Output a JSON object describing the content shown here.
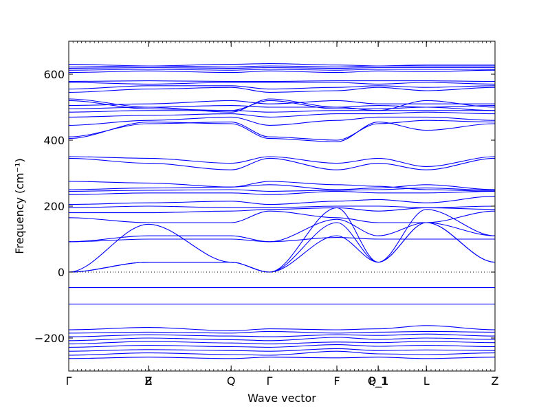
{
  "chart_data": {
    "type": "line",
    "xlabel": "Wave vector",
    "ylabel": "Frequency (cm⁻¹)",
    "ylim": [
      -300,
      700
    ],
    "xlim": [
      0,
      1
    ],
    "yticks": [
      -200,
      0,
      200,
      400,
      600
    ],
    "ytick_labels": [
      "−200",
      "0",
      "200",
      "400",
      "600"
    ],
    "high_symmetry_points": [
      {
        "label": "Γ",
        "x": 0.0
      },
      {
        "label": "B",
        "x": 0.187
      },
      {
        "label": "Z",
        "x": 0.187
      },
      {
        "label": "Q",
        "x": 0.381
      },
      {
        "label": "Γ",
        "x": 0.471
      },
      {
        "label": "F",
        "x": 0.629
      },
      {
        "label": "P_1",
        "x": 0.726
      },
      {
        "label": "Q_1",
        "x": 0.726
      },
      {
        "label": "L",
        "x": 0.839
      },
      {
        "label": "Z",
        "x": 1.0
      }
    ],
    "zero_line": true,
    "line_color": "#0000ff",
    "series": [
      {
        "x": [
          0,
          0.187,
          0.381,
          0.471,
          0.629,
          0.726,
          0.839,
          1
        ],
        "y": [
          -262,
          -258,
          -262,
          -258,
          -260,
          -258,
          -262,
          -258
        ]
      },
      {
        "x": [
          0,
          0.187,
          0.381,
          0.471,
          0.629,
          0.726,
          0.839,
          1
        ],
        "y": [
          -252,
          -245,
          -250,
          -252,
          -240,
          -248,
          -250,
          -245
        ]
      },
      {
        "x": [
          0,
          0.187,
          0.381,
          0.471,
          0.629,
          0.726,
          0.839,
          1
        ],
        "y": [
          -240,
          -235,
          -238,
          -240,
          -232,
          -238,
          -236,
          -238
        ]
      },
      {
        "x": [
          0,
          0.187,
          0.381,
          0.471,
          0.629,
          0.726,
          0.839,
          1
        ],
        "y": [
          -228,
          -222,
          -226,
          -228,
          -220,
          -225,
          -222,
          -226
        ]
      },
      {
        "x": [
          0,
          0.187,
          0.381,
          0.471,
          0.629,
          0.726,
          0.839,
          1
        ],
        "y": [
          -218,
          -210,
          -215,
          -218,
          -212,
          -214,
          -210,
          -214
        ]
      },
      {
        "x": [
          0,
          0.187,
          0.381,
          0.471,
          0.629,
          0.726,
          0.839,
          1
        ],
        "y": [
          -208,
          -200,
          -205,
          -208,
          -198,
          -204,
          -200,
          -204
        ]
      },
      {
        "x": [
          0,
          0.187,
          0.381,
          0.471,
          0.629,
          0.726,
          0.839,
          1
        ],
        "y": [
          -196,
          -190,
          -194,
          -196,
          -190,
          -192,
          -188,
          -194
        ]
      },
      {
        "x": [
          0,
          0.187,
          0.381,
          0.471,
          0.629,
          0.726,
          0.839,
          1
        ],
        "y": [
          -185,
          -182,
          -185,
          -180,
          -185,
          -182,
          -180,
          -182
        ]
      },
      {
        "x": [
          0,
          0.187,
          0.381,
          0.471,
          0.629,
          0.726,
          0.839,
          1
        ],
        "y": [
          -175,
          -168,
          -178,
          -172,
          -175,
          -172,
          -162,
          -175
        ]
      },
      {
        "x": [
          0,
          1
        ],
        "y": [
          -97,
          -97
        ]
      },
      {
        "x": [
          0,
          1
        ],
        "y": [
          -47,
          -47
        ]
      },
      {
        "x": [
          0,
          0.187,
          0.381,
          0.471,
          0.629,
          0.726,
          0.839,
          1
        ],
        "y": [
          0,
          30,
          30,
          0,
          150,
          30,
          150,
          30
        ]
      },
      {
        "x": [
          0,
          0.187,
          0.381,
          0.471,
          0.629,
          0.726,
          0.839,
          1
        ],
        "y": [
          0,
          30,
          30,
          0,
          110,
          30,
          150,
          30
        ]
      },
      {
        "x": [
          0,
          0.187,
          0.381,
          0.471,
          0.629,
          0.726,
          0.839,
          1
        ],
        "y": [
          0,
          145,
          30,
          0,
          195,
          30,
          190,
          110
        ]
      },
      {
        "x": [
          0,
          0.187,
          0.381,
          0.471,
          0.629,
          0.726,
          0.839,
          1
        ],
        "y": [
          92,
          100,
          100,
          92,
          105,
          100,
          100,
          100
        ]
      },
      {
        "x": [
          0,
          0.187,
          0.381,
          0.471,
          0.629,
          0.726,
          0.839,
          1
        ],
        "y": [
          92,
          110,
          110,
          92,
          160,
          110,
          150,
          110
        ]
      },
      {
        "x": [
          0,
          0.187,
          0.381,
          0.471,
          0.629,
          0.726,
          0.839,
          1
        ],
        "y": [
          165,
          150,
          150,
          185,
          165,
          150,
          150,
          185
        ]
      },
      {
        "x": [
          0,
          0.187,
          0.381,
          0.471,
          0.629,
          0.726,
          0.839,
          1
        ],
        "y": [
          180,
          180,
          185,
          190,
          195,
          185,
          195,
          200
        ]
      },
      {
        "x": [
          0,
          0.187,
          0.381,
          0.471,
          0.629,
          0.726,
          0.839,
          1
        ],
        "y": [
          195,
          200,
          195,
          195,
          200,
          200,
          195,
          190
        ]
      },
      {
        "x": [
          0,
          0.187,
          0.381,
          0.471,
          0.629,
          0.726,
          0.839,
          1
        ],
        "y": [
          205,
          210,
          215,
          205,
          215,
          220,
          210,
          230
        ]
      },
      {
        "x": [
          0,
          0.187,
          0.381,
          0.471,
          0.629,
          0.726,
          0.839,
          1
        ],
        "y": [
          235,
          240,
          240,
          235,
          245,
          240,
          240,
          245
        ]
      },
      {
        "x": [
          0,
          0.187,
          0.381,
          0.471,
          0.629,
          0.726,
          0.839,
          1
        ],
        "y": [
          245,
          248,
          250,
          245,
          248,
          250,
          255,
          248
        ]
      },
      {
        "x": [
          0,
          0.187,
          0.381,
          0.471,
          0.629,
          0.726,
          0.839,
          1
        ],
        "y": [
          250,
          255,
          258,
          265,
          250,
          255,
          265,
          250
        ]
      },
      {
        "x": [
          0,
          0.187,
          0.381,
          0.471,
          0.629,
          0.726,
          0.839,
          1
        ],
        "y": [
          275,
          270,
          258,
          275,
          265,
          260,
          250,
          245
        ]
      },
      {
        "x": [
          0,
          0.187,
          0.381,
          0.471,
          0.629,
          0.726,
          0.839,
          1
        ],
        "y": [
          345,
          330,
          310,
          345,
          310,
          330,
          310,
          345
        ]
      },
      {
        "x": [
          0,
          0.187,
          0.381,
          0.471,
          0.629,
          0.726,
          0.839,
          1
        ],
        "y": [
          350,
          345,
          330,
          350,
          330,
          345,
          320,
          350
        ]
      },
      {
        "x": [
          0,
          0.187,
          0.381,
          0.471,
          0.629,
          0.726,
          0.839,
          1
        ],
        "y": [
          405,
          455,
          450,
          405,
          395,
          455,
          430,
          450
        ]
      },
      {
        "x": [
          0,
          0.187,
          0.381,
          0.471,
          0.629,
          0.726,
          0.839,
          1
        ],
        "y": [
          410,
          450,
          455,
          410,
          400,
          450,
          460,
          455
        ]
      },
      {
        "x": [
          0,
          0.187,
          0.381,
          0.471,
          0.629,
          0.726,
          0.839,
          1
        ],
        "y": [
          445,
          460,
          470,
          445,
          460,
          470,
          470,
          460
        ]
      },
      {
        "x": [
          0,
          0.187,
          0.381,
          0.471,
          0.629,
          0.726,
          0.839,
          1
        ],
        "y": [
          470,
          475,
          480,
          470,
          480,
          480,
          485,
          480
        ]
      },
      {
        "x": [
          0,
          0.187,
          0.381,
          0.471,
          0.629,
          0.726,
          0.839,
          1
        ],
        "y": [
          485,
          490,
          490,
          485,
          490,
          490,
          490,
          490
        ]
      },
      {
        "x": [
          0,
          0.187,
          0.381,
          0.471,
          0.629,
          0.726,
          0.839,
          1
        ],
        "y": [
          495,
          500,
          505,
          500,
          500,
          505,
          500,
          505
        ]
      },
      {
        "x": [
          0,
          0.187,
          0.381,
          0.471,
          0.629,
          0.726,
          0.839,
          1
        ],
        "y": [
          505,
          510,
          520,
          510,
          520,
          510,
          510,
          510
        ]
      },
      {
        "x": [
          0,
          0.187,
          0.381,
          0.471,
          0.629,
          0.726,
          0.839,
          1
        ],
        "y": [
          520,
          495,
          490,
          520,
          495,
          495,
          500,
          490
        ]
      },
      {
        "x": [
          0,
          0.187,
          0.381,
          0.471,
          0.629,
          0.726,
          0.839,
          1
        ],
        "y": [
          525,
          500,
          485,
          525,
          500,
          490,
          520,
          500
        ]
      },
      {
        "x": [
          0,
          0.187,
          0.381,
          0.471,
          0.629,
          0.726,
          0.839,
          1
        ],
        "y": [
          545,
          555,
          560,
          545,
          550,
          560,
          550,
          560
        ]
      },
      {
        "x": [
          0,
          0.187,
          0.381,
          0.471,
          0.629,
          0.726,
          0.839,
          1
        ],
        "y": [
          555,
          565,
          565,
          555,
          560,
          565,
          560,
          565
        ]
      },
      {
        "x": [
          0,
          0.187,
          0.381,
          0.471,
          0.629,
          0.726,
          0.839,
          1
        ],
        "y": [
          575,
          570,
          575,
          575,
          575,
          570,
          575,
          570
        ]
      },
      {
        "x": [
          0,
          0.187,
          0.381,
          0.471,
          0.629,
          0.726,
          0.839,
          1
        ],
        "y": [
          578,
          580,
          578,
          578,
          580,
          580,
          580,
          578
        ]
      },
      {
        "x": [
          0,
          0.187,
          0.381,
          0.471,
          0.629,
          0.726,
          0.839,
          1
        ],
        "y": [
          605,
          610,
          605,
          610,
          605,
          610,
          608,
          612
        ]
      },
      {
        "x": [
          0,
          0.187,
          0.381,
          0.471,
          0.629,
          0.726,
          0.839,
          1
        ],
        "y": [
          612,
          615,
          612,
          615,
          612,
          615,
          615,
          615
        ]
      },
      {
        "x": [
          0,
          0.187,
          0.381,
          0.471,
          0.629,
          0.726,
          0.839,
          1
        ],
        "y": [
          618,
          620,
          618,
          620,
          618,
          620,
          620,
          620
        ]
      },
      {
        "x": [
          0,
          0.187,
          0.381,
          0.471,
          0.629,
          0.726,
          0.839,
          1
        ],
        "y": [
          622,
          625,
          622,
          625,
          622,
          625,
          625,
          625
        ]
      },
      {
        "x": [
          0,
          0.187,
          0.381,
          0.471,
          0.629,
          0.726,
          0.839,
          1
        ],
        "y": [
          630,
          625,
          630,
          632,
          628,
          625,
          628,
          628
        ]
      }
    ]
  }
}
